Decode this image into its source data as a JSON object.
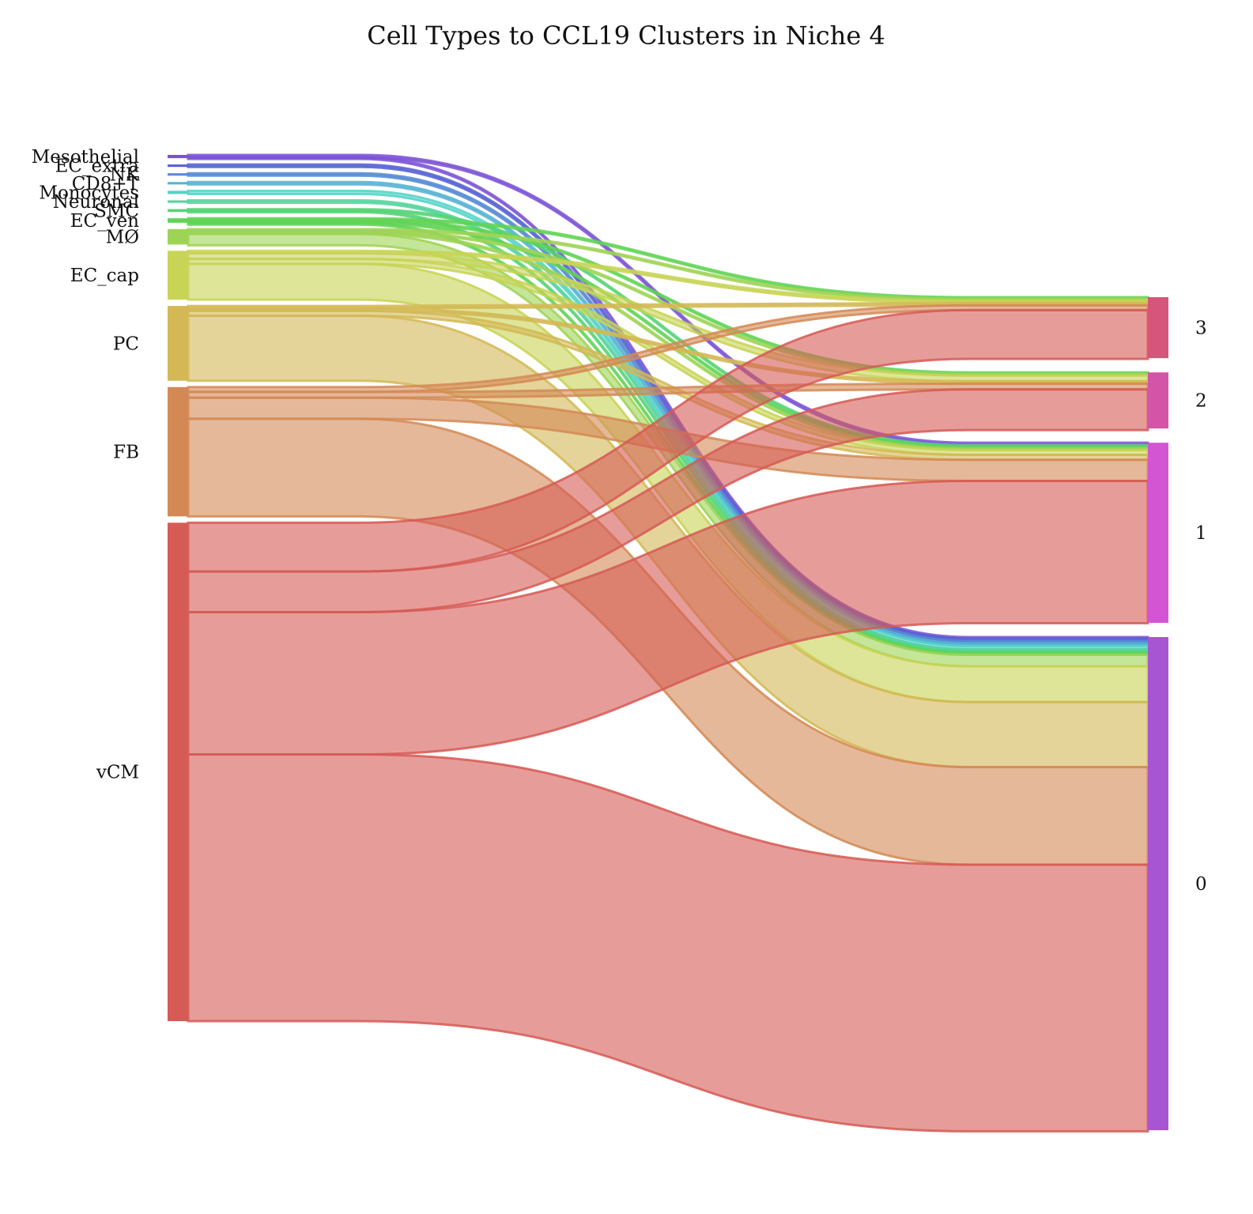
{
  "chart_data": {
    "type": "sankey",
    "title": "Cell Types to CCL19 Clusters in Niche 4",
    "sources": [
      {
        "name": "Mesothelial",
        "color": "#7b52d6"
      },
      {
        "name": "EC_extra",
        "color": "#5560d4"
      },
      {
        "name": "NK",
        "color": "#5589d4"
      },
      {
        "name": "CD8+T",
        "color": "#55b3d4"
      },
      {
        "name": "Monocytes",
        "color": "#55d4c8"
      },
      {
        "name": "Neuronal",
        "color": "#55d49e"
      },
      {
        "name": "SMC",
        "color": "#55d474"
      },
      {
        "name": "EC_ven",
        "color": "#60d455"
      },
      {
        "name": "MØ",
        "color": "#9ed455"
      },
      {
        "name": "EC_cap",
        "color": "#c8d455"
      },
      {
        "name": "PC",
        "color": "#d4b855"
      },
      {
        "name": "FB",
        "color": "#d48955"
      },
      {
        "name": "vCM",
        "color": "#d65b55"
      }
    ],
    "targets": [
      {
        "name": "3",
        "color": "#d6557a"
      },
      {
        "name": "2",
        "color": "#d455a8"
      },
      {
        "name": "1",
        "color": "#d455d4"
      },
      {
        "name": "0",
        "color": "#a855d4"
      }
    ],
    "flows": [
      {
        "source": "Mesothelial",
        "target": "1",
        "value": 3
      },
      {
        "source": "Mesothelial",
        "target": "0",
        "value": 1
      },
      {
        "source": "EC_extra",
        "target": "0",
        "value": 3
      },
      {
        "source": "NK",
        "target": "0",
        "value": 3
      },
      {
        "source": "CD8+T",
        "target": "0",
        "value": 3
      },
      {
        "source": "Monocytes",
        "target": "0",
        "value": 4
      },
      {
        "source": "Neuronal",
        "target": "0",
        "value": 3
      },
      {
        "source": "SMC",
        "target": "1",
        "value": 1.5
      },
      {
        "source": "SMC",
        "target": "0",
        "value": 2
      },
      {
        "source": "EC_ven",
        "target": "3",
        "value": 1
      },
      {
        "source": "EC_ven",
        "target": "2",
        "value": 1
      },
      {
        "source": "EC_ven",
        "target": "1",
        "value": 2
      },
      {
        "source": "EC_ven",
        "target": "0",
        "value": 1.5
      },
      {
        "source": "MØ",
        "target": "3",
        "value": 2
      },
      {
        "source": "MØ",
        "target": "2",
        "value": 1
      },
      {
        "source": "MØ",
        "target": "1",
        "value": 2
      },
      {
        "source": "MØ",
        "target": "0",
        "value": 14
      },
      {
        "source": "EC_cap",
        "target": "3",
        "value": 3
      },
      {
        "source": "EC_cap",
        "target": "2",
        "value": 7
      },
      {
        "source": "EC_cap",
        "target": "1",
        "value": 6
      },
      {
        "source": "EC_cap",
        "target": "0",
        "value": 44
      },
      {
        "source": "PC",
        "target": "3",
        "value": 3
      },
      {
        "source": "PC",
        "target": "2",
        "value": 3
      },
      {
        "source": "PC",
        "target": "1",
        "value": 6
      },
      {
        "source": "PC",
        "target": "0",
        "value": 80
      },
      {
        "source": "FB",
        "target": "3",
        "value": 6
      },
      {
        "source": "FB",
        "target": "2",
        "value": 7
      },
      {
        "source": "FB",
        "target": "1",
        "value": 26
      },
      {
        "source": "FB",
        "target": "0",
        "value": 120
      },
      {
        "source": "vCM",
        "target": "3",
        "value": 60
      },
      {
        "source": "vCM",
        "target": "2",
        "value": 50
      },
      {
        "source": "vCM",
        "target": "1",
        "value": 175
      },
      {
        "source": "vCM",
        "target": "0",
        "value": 328
      }
    ]
  }
}
